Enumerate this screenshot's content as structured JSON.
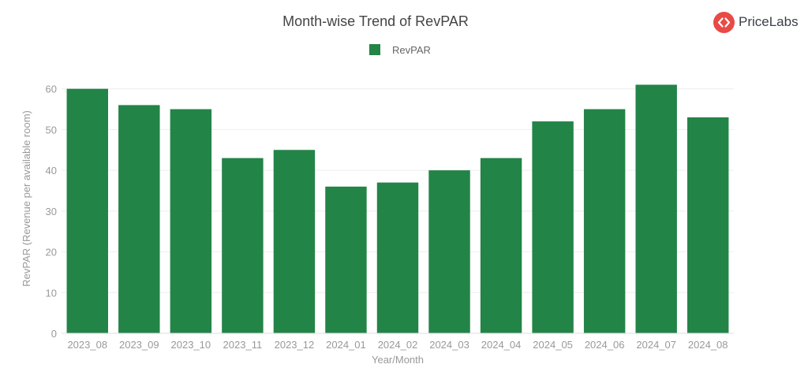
{
  "brand": {
    "name": "PriceLabs",
    "logo_icon": "pricelabs-logo-icon",
    "accent": "#ea4a45"
  },
  "chart_data": {
    "type": "bar",
    "title": "Month-wise Trend of RevPAR",
    "xlabel": "Year/Month",
    "ylabel": "RevPAR (Revenue per available room)",
    "categories": [
      "2023_08",
      "2023_09",
      "2023_10",
      "2023_11",
      "2023_12",
      "2024_01",
      "2024_02",
      "2024_03",
      "2024_04",
      "2024_05",
      "2024_06",
      "2024_07",
      "2024_08"
    ],
    "series": [
      {
        "name": "RevPAR",
        "color": "#238447",
        "values": [
          60,
          56,
          55,
          43,
          45,
          36,
          37,
          40,
          43,
          52,
          55,
          61,
          53
        ]
      }
    ],
    "ylim": [
      0,
      64
    ],
    "yticks": [
      0,
      10,
      20,
      30,
      40,
      50,
      60
    ],
    "grid": true,
    "legend": "top-center"
  }
}
